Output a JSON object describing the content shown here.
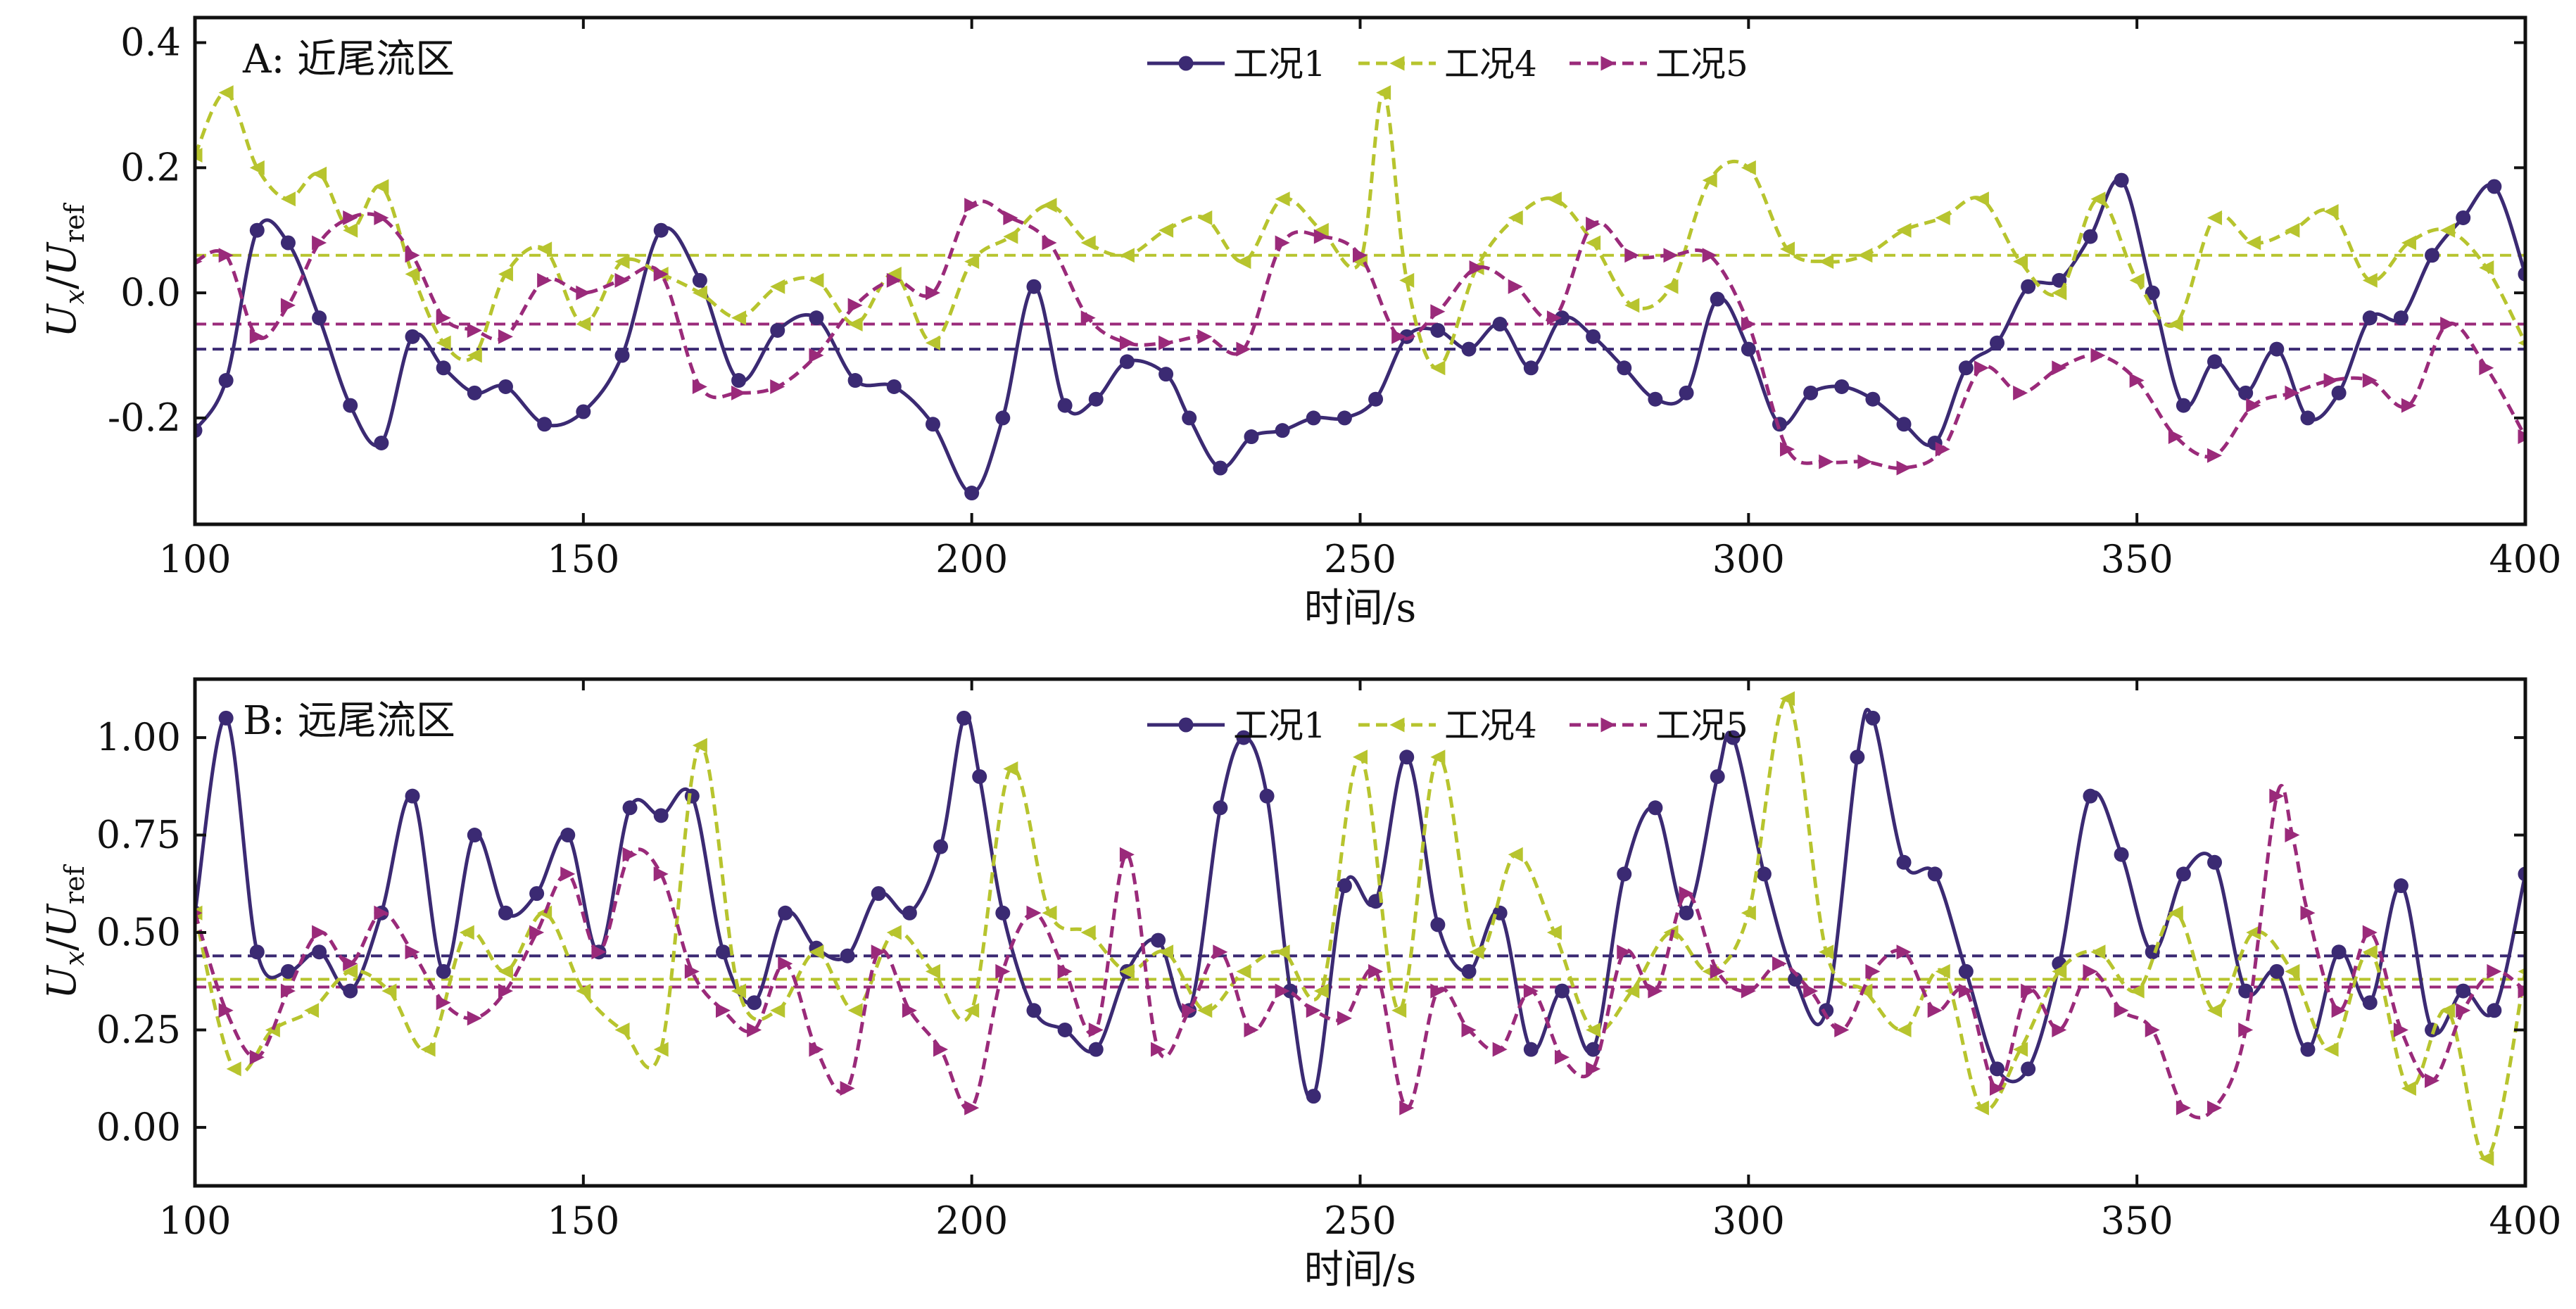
{
  "chart_data": [
    {
      "type": "line",
      "panel_title": "A: 近尾流区",
      "xlabel": "时间/s",
      "ylabel_main": "U",
      "ylabel_main_sub": "x",
      "ylabel_ref": "U",
      "ylabel_ref_sub": "ref",
      "xlim": [
        100,
        400
      ],
      "ylim": [
        -0.37,
        0.44
      ],
      "xticks": [
        100,
        150,
        200,
        250,
        300,
        350,
        400
      ],
      "yticks": [
        -0.2,
        0.0,
        0.2,
        0.4
      ],
      "ytick_labels": [
        "-0.2",
        "0.0",
        "0.2",
        "0.4"
      ],
      "legend_position": "top-center",
      "series": [
        {
          "name": "工况1",
          "color": "#3b2a73",
          "style": "solid",
          "marker": "circle",
          "mean": -0.09,
          "x": [
            100,
            104,
            108,
            112,
            116,
            120,
            124,
            128,
            132,
            136,
            140,
            145,
            150,
            155,
            160,
            165,
            170,
            175,
            180,
            185,
            190,
            195,
            200,
            204,
            208,
            212,
            216,
            220,
            225,
            228,
            232,
            236,
            240,
            244,
            248,
            252,
            256,
            260,
            264,
            268,
            272,
            276,
            280,
            284,
            288,
            292,
            296,
            300,
            304,
            308,
            312,
            316,
            320,
            324,
            328,
            332,
            336,
            340,
            344,
            348,
            352,
            356,
            360,
            364,
            368,
            372,
            376,
            380,
            384,
            388,
            392,
            396,
            400
          ],
          "y": [
            -0.22,
            -0.14,
            0.1,
            0.08,
            -0.04,
            -0.18,
            -0.24,
            -0.07,
            -0.12,
            -0.16,
            -0.15,
            -0.21,
            -0.19,
            -0.1,
            0.1,
            0.02,
            -0.14,
            -0.06,
            -0.04,
            -0.14,
            -0.15,
            -0.21,
            -0.32,
            -0.2,
            0.01,
            -0.18,
            -0.17,
            -0.11,
            -0.13,
            -0.2,
            -0.28,
            -0.23,
            -0.22,
            -0.2,
            -0.2,
            -0.17,
            -0.07,
            -0.06,
            -0.09,
            -0.05,
            -0.12,
            -0.04,
            -0.07,
            -0.12,
            -0.17,
            -0.16,
            -0.01,
            -0.09,
            -0.21,
            -0.16,
            -0.15,
            -0.17,
            -0.21,
            -0.24,
            -0.12,
            -0.08,
            0.01,
            0.02,
            0.09,
            0.18,
            0.0,
            -0.18,
            -0.11,
            -0.16,
            -0.09,
            -0.2,
            -0.16,
            -0.04,
            -0.04,
            0.06,
            0.12,
            0.17,
            0.03
          ]
        },
        {
          "name": "工况4",
          "color": "#b7c42e",
          "style": "dashed",
          "marker": "triangle-left",
          "mean": 0.06,
          "x": [
            100,
            104,
            108,
            112,
            116,
            120,
            124,
            128,
            132,
            136,
            140,
            145,
            150,
            155,
            160,
            165,
            170,
            175,
            180,
            185,
            190,
            195,
            200,
            205,
            210,
            215,
            220,
            225,
            230,
            235,
            240,
            245,
            250,
            253,
            256,
            260,
            265,
            270,
            275,
            280,
            285,
            290,
            295,
            300,
            305,
            310,
            315,
            320,
            325,
            330,
            335,
            340,
            345,
            350,
            355,
            360,
            365,
            370,
            375,
            380,
            385,
            390,
            395,
            400
          ],
          "y": [
            0.22,
            0.32,
            0.2,
            0.15,
            0.19,
            0.1,
            0.17,
            0.03,
            -0.08,
            -0.1,
            0.03,
            0.07,
            -0.05,
            0.05,
            0.03,
            0.0,
            -0.04,
            0.01,
            0.02,
            -0.05,
            0.03,
            -0.08,
            0.05,
            0.09,
            0.14,
            0.08,
            0.06,
            0.1,
            0.12,
            0.05,
            0.15,
            0.1,
            0.05,
            0.32,
            0.02,
            -0.12,
            0.04,
            0.12,
            0.15,
            0.08,
            -0.02,
            0.01,
            0.18,
            0.2,
            0.07,
            0.05,
            0.06,
            0.1,
            0.12,
            0.15,
            0.05,
            0.0,
            0.15,
            0.02,
            -0.05,
            0.12,
            0.08,
            0.1,
            0.13,
            0.02,
            0.08,
            0.1,
            0.04,
            -0.08
          ]
        },
        {
          "name": "工况5",
          "color": "#9a2a7a",
          "style": "dashed",
          "marker": "triangle-right",
          "mean": -0.05,
          "x": [
            100,
            104,
            108,
            112,
            116,
            120,
            124,
            128,
            132,
            136,
            140,
            145,
            150,
            155,
            160,
            165,
            170,
            175,
            180,
            185,
            190,
            195,
            200,
            205,
            210,
            215,
            220,
            225,
            230,
            235,
            240,
            245,
            250,
            255,
            260,
            265,
            270,
            275,
            280,
            285,
            290,
            295,
            300,
            305,
            310,
            315,
            320,
            325,
            330,
            335,
            340,
            345,
            350,
            355,
            360,
            365,
            370,
            375,
            380,
            385,
            390,
            395,
            400
          ],
          "y": [
            0.05,
            0.06,
            -0.07,
            -0.02,
            0.08,
            0.12,
            0.12,
            0.06,
            -0.04,
            -0.06,
            -0.07,
            0.02,
            0.0,
            0.02,
            0.03,
            -0.15,
            -0.16,
            -0.15,
            -0.1,
            -0.02,
            0.02,
            0.0,
            0.14,
            0.12,
            0.08,
            -0.04,
            -0.08,
            -0.08,
            -0.07,
            -0.09,
            0.08,
            0.09,
            0.06,
            -0.07,
            -0.03,
            0.04,
            0.01,
            -0.04,
            0.11,
            0.06,
            0.06,
            0.06,
            -0.05,
            -0.25,
            -0.27,
            -0.27,
            -0.28,
            -0.25,
            -0.12,
            -0.16,
            -0.12,
            -0.1,
            -0.14,
            -0.23,
            -0.26,
            -0.18,
            -0.16,
            -0.14,
            -0.14,
            -0.18,
            -0.05,
            -0.12,
            -0.23
          ]
        }
      ]
    },
    {
      "type": "line",
      "panel_title": "B: 远尾流区",
      "xlabel": "时间/s",
      "ylabel_main": "U",
      "ylabel_main_sub": "x",
      "ylabel_ref": "U",
      "ylabel_ref_sub": "ref",
      "xlim": [
        100,
        400
      ],
      "ylim": [
        -0.15,
        1.15
      ],
      "xticks": [
        100,
        150,
        200,
        250,
        300,
        350,
        400
      ],
      "yticks": [
        0.0,
        0.25,
        0.5,
        0.75,
        1.0
      ],
      "ytick_labels": [
        "0.00",
        "0.25",
        "0.50",
        "0.75",
        "1.00"
      ],
      "legend_position": "top-center",
      "series": [
        {
          "name": "工况1",
          "color": "#3b2a73",
          "style": "solid",
          "marker": "circle",
          "mean": 0.44,
          "x": [
            100,
            104,
            108,
            112,
            116,
            120,
            124,
            128,
            132,
            136,
            140,
            144,
            148,
            152,
            156,
            160,
            164,
            168,
            172,
            176,
            180,
            184,
            188,
            192,
            196,
            199,
            201,
            204,
            208,
            212,
            216,
            220,
            224,
            228,
            232,
            235,
            238,
            241,
            244,
            248,
            252,
            256,
            260,
            264,
            268,
            272,
            276,
            280,
            284,
            288,
            292,
            296,
            298,
            302,
            306,
            310,
            314,
            316,
            320,
            324,
            328,
            332,
            336,
            340,
            344,
            348,
            352,
            356,
            360,
            364,
            368,
            372,
            376,
            380,
            384,
            388,
            392,
            396,
            400
          ],
          "y": [
            0.55,
            1.05,
            0.45,
            0.4,
            0.45,
            0.35,
            0.55,
            0.85,
            0.4,
            0.75,
            0.55,
            0.6,
            0.75,
            0.45,
            0.82,
            0.8,
            0.85,
            0.45,
            0.32,
            0.55,
            0.46,
            0.44,
            0.6,
            0.55,
            0.72,
            1.05,
            0.9,
            0.55,
            0.3,
            0.25,
            0.2,
            0.4,
            0.48,
            0.3,
            0.82,
            1.0,
            0.85,
            0.35,
            0.08,
            0.62,
            0.58,
            0.95,
            0.52,
            0.4,
            0.55,
            0.2,
            0.35,
            0.2,
            0.65,
            0.82,
            0.55,
            0.9,
            1.0,
            0.65,
            0.38,
            0.3,
            0.95,
            1.05,
            0.68,
            0.65,
            0.4,
            0.15,
            0.15,
            0.42,
            0.85,
            0.7,
            0.45,
            0.65,
            0.68,
            0.35,
            0.4,
            0.2,
            0.45,
            0.32,
            0.62,
            0.25,
            0.35,
            0.3,
            0.65
          ]
        },
        {
          "name": "工况4",
          "color": "#b7c42e",
          "style": "dashed",
          "marker": "triangle-left",
          "mean": 0.38,
          "x": [
            100,
            105,
            110,
            115,
            120,
            125,
            130,
            135,
            140,
            145,
            150,
            155,
            160,
            165,
            170,
            175,
            180,
            185,
            190,
            195,
            200,
            205,
            210,
            215,
            220,
            225,
            230,
            235,
            240,
            245,
            250,
            255,
            260,
            265,
            270,
            275,
            280,
            285,
            290,
            295,
            300,
            305,
            310,
            315,
            320,
            325,
            330,
            335,
            340,
            345,
            350,
            355,
            360,
            365,
            370,
            375,
            380,
            385,
            390,
            395,
            400
          ],
          "y": [
            0.55,
            0.15,
            0.25,
            0.3,
            0.4,
            0.35,
            0.2,
            0.5,
            0.4,
            0.55,
            0.35,
            0.25,
            0.2,
            0.98,
            0.35,
            0.3,
            0.45,
            0.3,
            0.5,
            0.4,
            0.3,
            0.92,
            0.55,
            0.5,
            0.4,
            0.45,
            0.3,
            0.4,
            0.45,
            0.35,
            0.95,
            0.3,
            0.95,
            0.45,
            0.7,
            0.5,
            0.25,
            0.35,
            0.5,
            0.4,
            0.55,
            1.1,
            0.45,
            0.35,
            0.25,
            0.4,
            0.05,
            0.2,
            0.4,
            0.45,
            0.35,
            0.55,
            0.3,
            0.5,
            0.4,
            0.2,
            0.45,
            0.1,
            0.3,
            -0.08,
            0.4
          ]
        },
        {
          "name": "工况5",
          "color": "#9a2a7a",
          "style": "dashed",
          "marker": "triangle-right",
          "mean": 0.36,
          "x": [
            100,
            104,
            108,
            112,
            116,
            120,
            124,
            128,
            132,
            136,
            140,
            144,
            148,
            152,
            156,
            160,
            164,
            168,
            172,
            176,
            180,
            184,
            188,
            192,
            196,
            200,
            204,
            208,
            212,
            216,
            220,
            224,
            228,
            232,
            236,
            240,
            244,
            248,
            252,
            256,
            260,
            264,
            268,
            272,
            276,
            280,
            284,
            288,
            292,
            296,
            300,
            304,
            308,
            312,
            316,
            320,
            324,
            328,
            332,
            336,
            340,
            344,
            348,
            352,
            356,
            360,
            364,
            368,
            370,
            372,
            376,
            380,
            384,
            388,
            392,
            396,
            400
          ],
          "y": [
            0.55,
            0.3,
            0.18,
            0.35,
            0.5,
            0.42,
            0.55,
            0.45,
            0.32,
            0.28,
            0.35,
            0.5,
            0.65,
            0.45,
            0.7,
            0.65,
            0.4,
            0.3,
            0.25,
            0.42,
            0.2,
            0.1,
            0.45,
            0.3,
            0.2,
            0.05,
            0.4,
            0.55,
            0.4,
            0.25,
            0.7,
            0.2,
            0.3,
            0.45,
            0.25,
            0.35,
            0.3,
            0.28,
            0.4,
            0.05,
            0.35,
            0.25,
            0.2,
            0.35,
            0.18,
            0.15,
            0.45,
            0.35,
            0.6,
            0.4,
            0.35,
            0.42,
            0.35,
            0.25,
            0.4,
            0.45,
            0.3,
            0.35,
            0.1,
            0.35,
            0.25,
            0.4,
            0.3,
            0.25,
            0.05,
            0.05,
            0.25,
            0.85,
            0.75,
            0.55,
            0.3,
            0.5,
            0.25,
            0.12,
            0.3,
            0.4,
            0.35
          ]
        }
      ]
    }
  ]
}
